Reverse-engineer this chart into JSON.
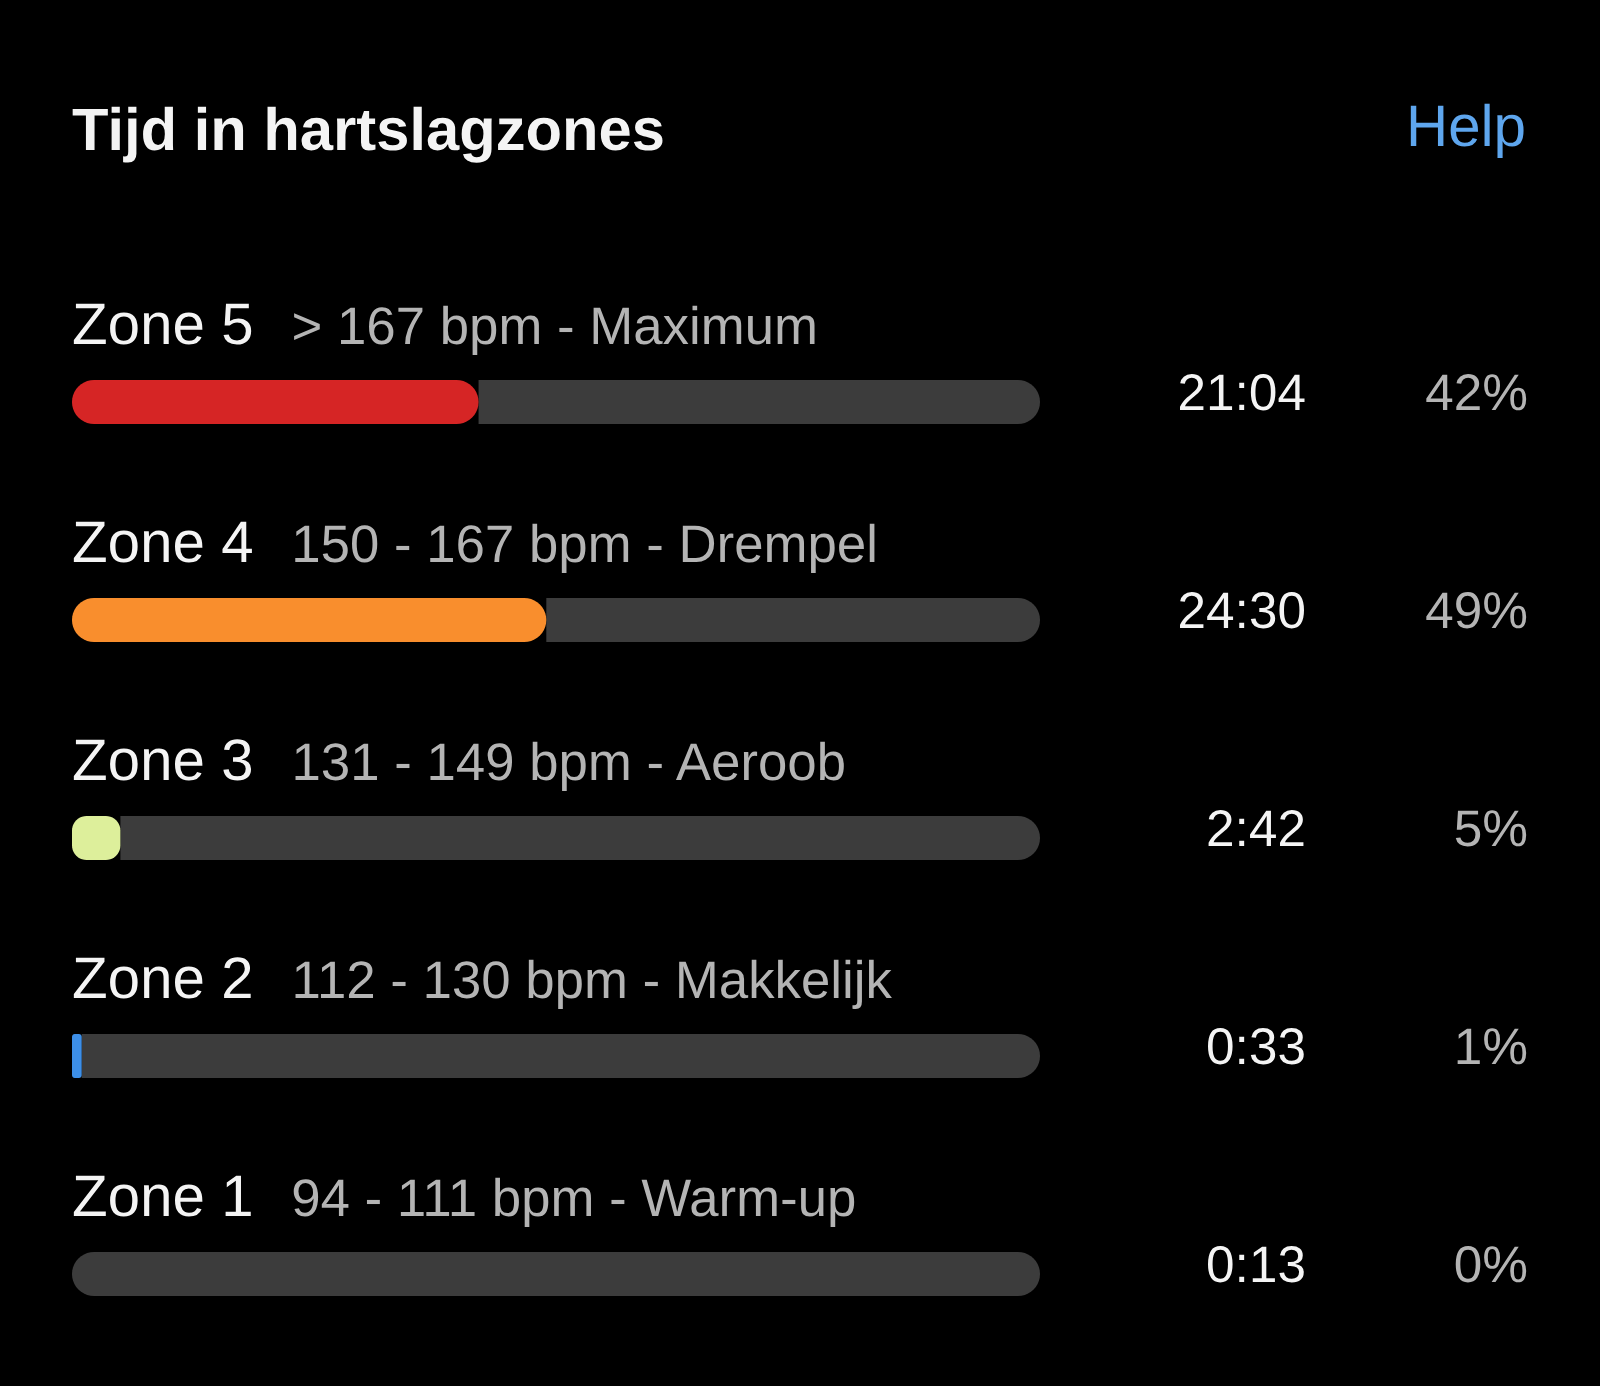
{
  "chart_data": {
    "type": "bar",
    "orientation": "horizontal",
    "stacked": true,
    "title": "Tijd in hartslagzones",
    "categories": [
      "Zone 5",
      "Zone 4",
      "Zone 3",
      "Zone 2",
      "Zone 1"
    ],
    "series": [
      {
        "colors": [
          "#d62525",
          "#f98e2d",
          "#ddef9b",
          "#3d8fe8",
          "#8c8c8c"
        ],
        "values": [
          42,
          49,
          5,
          1,
          0
        ],
        "value_labels": [
          "42%",
          "49%",
          "5%",
          "1%",
          "0%"
        ]
      },
      {
        "color": "#3c3c3c",
        "values": [
          58,
          51,
          95,
          99,
          100
        ]
      }
    ],
    "xlim": [
      0,
      100
    ],
    "tick_labels": "y",
    "annotations": [
      "Help",
      "> 167 bpm - Maximum",
      "150 - 167 bpm - Drempel",
      "131 - 149 bpm - Aeroob",
      "112 - 130 bpm - Makkelijk",
      "94 - 111 bpm - Warm-up",
      "21:04",
      "24:30",
      "2:42",
      "0:33",
      "0:13"
    ]
  }
}
